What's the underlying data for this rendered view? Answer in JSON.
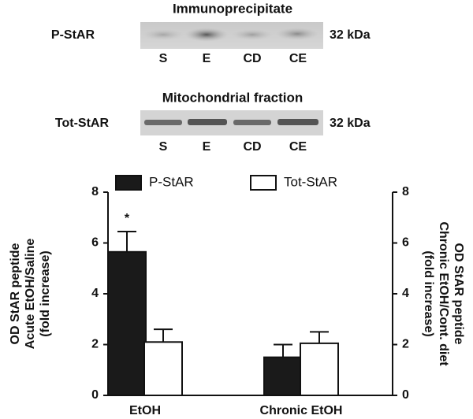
{
  "blots": [
    {
      "title": "Immunoprecipitate",
      "label": "P-StAR",
      "size": "32 kDa",
      "lanes": [
        "S",
        "E",
        "CD",
        "CE"
      ]
    },
    {
      "title": "Mitochondrial fraction",
      "label": "Tot-StAR",
      "size": "32 kDa",
      "lanes": [
        "S",
        "E",
        "CD",
        "CE"
      ]
    }
  ],
  "chart_data": {
    "type": "bar",
    "categories": [
      "EtOH",
      "Chronic EtOH"
    ],
    "series": [
      {
        "name": "P-StAR",
        "color": "#1a1a1a",
        "values": [
          5.65,
          1.5
        ],
        "errors": [
          0.8,
          0.5
        ]
      },
      {
        "name": "Tot-StAR",
        "color": "#ffffff",
        "values": [
          2.1,
          2.05
        ],
        "errors": [
          0.5,
          0.45
        ]
      }
    ],
    "ylabel": [
      "OD StAR peptide",
      "Acute EtOH/Saline",
      "(fold increase)"
    ],
    "y2label": [
      "OD StAR peptide",
      "Chronic EtOH/Cont. diet",
      "(fold increase)"
    ],
    "annotations": [
      "*"
    ],
    "ylim": [
      0,
      8
    ],
    "yticks": [
      0,
      2,
      4,
      6,
      8
    ],
    "y2lim": [
      0,
      8
    ],
    "y2ticks": [
      0,
      2,
      4,
      6,
      8
    ],
    "legend": "top"
  }
}
